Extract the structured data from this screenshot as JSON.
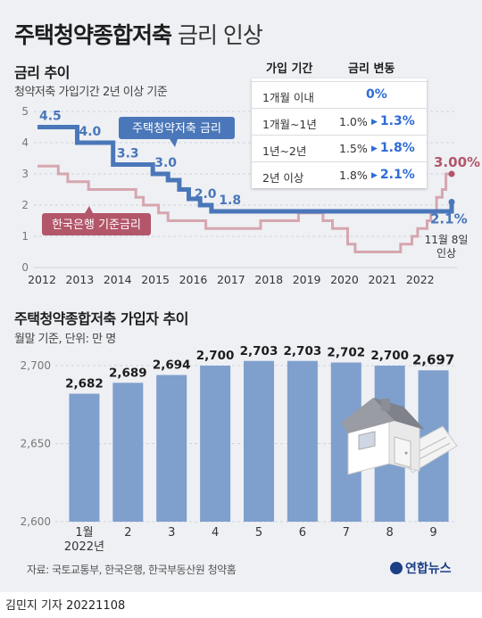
{
  "title": {
    "main": "주택청약종합저축",
    "sub": " 금리 인상"
  },
  "top_section": {
    "title": "금리 추이",
    "subtitle": "청약저축 가입기간 2년 이상 기준"
  },
  "rate_table": {
    "headers": [
      "가입 기간",
      "금리 변동"
    ],
    "rows": [
      {
        "period": "1개월 이내",
        "before": "",
        "after": "0%"
      },
      {
        "period": "1개월~1년",
        "before": "1.0%",
        "after": "1.3%"
      },
      {
        "period": "1년~2년",
        "before": "1.5%",
        "after": "1.8%"
      },
      {
        "period": "2년 이상",
        "before": "1.8%",
        "after": "2.1%"
      }
    ]
  },
  "bottom_section": {
    "title": "주택청약종합저축 가입자 추이",
    "subtitle": "월말 기준, 단위: 만 명"
  },
  "footer": {
    "source": "자료: 국토교통부, 한국은행, 한국부동산원 청약홈",
    "logo": "연합뉴스",
    "byline": "김민지 기자  20221108"
  },
  "colors": {
    "savings": "#4a77b9",
    "base_rate": "#d6a6ae",
    "base_rate_label": "#b3566a",
    "bars": "#7f9fcd",
    "card": "#eef0f4"
  },
  "chart_data": [
    {
      "type": "line",
      "ylim": [
        0,
        5
      ],
      "yticks": [
        "0",
        "1",
        "2",
        "3",
        "4",
        "5"
      ],
      "xticks": [
        "2012",
        "2013",
        "2014",
        "2015",
        "2016",
        "2017",
        "2018",
        "2019",
        "2020",
        "2021",
        "2022"
      ],
      "series": [
        {
          "name": "주택청약저축 금리",
          "points": [
            [
              2012.0,
              4.5
            ],
            [
              2013.05,
              4.5
            ],
            [
              2013.05,
              4.0
            ],
            [
              2014.0,
              4.0
            ],
            [
              2014.0,
              3.3
            ],
            [
              2015.05,
              3.3
            ],
            [
              2015.05,
              3.0
            ],
            [
              2015.45,
              3.0
            ],
            [
              2015.45,
              2.8
            ],
            [
              2015.75,
              2.8
            ],
            [
              2015.75,
              2.5
            ],
            [
              2016.0,
              2.5
            ],
            [
              2016.0,
              2.2
            ],
            [
              2016.3,
              2.2
            ],
            [
              2016.3,
              2.0
            ],
            [
              2016.6,
              2.0
            ],
            [
              2016.6,
              1.8
            ],
            [
              2022.95,
              1.8
            ],
            [
              2022.95,
              2.1
            ]
          ],
          "labels": [
            {
              "x": 2012.0,
              "y": 4.5,
              "text": "4.5"
            },
            {
              "x": 2013.05,
              "y": 4.0,
              "text": "4.0"
            },
            {
              "x": 2014.05,
              "y": 3.3,
              "text": "3.3"
            },
            {
              "x": 2015.05,
              "y": 3.0,
              "text": "3.0"
            },
            {
              "x": 2016.1,
              "y": 2.0,
              "text": "2.0"
            },
            {
              "x": 2016.75,
              "y": 1.8,
              "text": "1.8"
            },
            {
              "x": 2022.95,
              "y": 2.1,
              "text": "2.1%"
            }
          ]
        },
        {
          "name": "한국은행 기준금리",
          "points": [
            [
              2012.0,
              3.25
            ],
            [
              2012.55,
              3.25
            ],
            [
              2012.55,
              3.0
            ],
            [
              2012.8,
              3.0
            ],
            [
              2012.8,
              2.75
            ],
            [
              2013.35,
              2.75
            ],
            [
              2013.35,
              2.5
            ],
            [
              2014.6,
              2.5
            ],
            [
              2014.6,
              2.25
            ],
            [
              2014.8,
              2.25
            ],
            [
              2014.8,
              2.0
            ],
            [
              2015.2,
              2.0
            ],
            [
              2015.2,
              1.75
            ],
            [
              2015.45,
              1.75
            ],
            [
              2015.45,
              1.5
            ],
            [
              2016.45,
              1.5
            ],
            [
              2016.45,
              1.25
            ],
            [
              2017.9,
              1.25
            ],
            [
              2017.9,
              1.5
            ],
            [
              2018.9,
              1.5
            ],
            [
              2018.9,
              1.75
            ],
            [
              2019.55,
              1.75
            ],
            [
              2019.55,
              1.5
            ],
            [
              2019.8,
              1.5
            ],
            [
              2019.8,
              1.25
            ],
            [
              2020.2,
              1.25
            ],
            [
              2020.2,
              0.75
            ],
            [
              2020.4,
              0.75
            ],
            [
              2020.4,
              0.5
            ],
            [
              2021.6,
              0.5
            ],
            [
              2021.6,
              0.75
            ],
            [
              2021.9,
              0.75
            ],
            [
              2021.9,
              1.0
            ],
            [
              2022.05,
              1.0
            ],
            [
              2022.05,
              1.25
            ],
            [
              2022.3,
              1.25
            ],
            [
              2022.3,
              1.5
            ],
            [
              2022.4,
              1.5
            ],
            [
              2022.4,
              1.75
            ],
            [
              2022.55,
              1.75
            ],
            [
              2022.55,
              2.25
            ],
            [
              2022.7,
              2.25
            ],
            [
              2022.7,
              2.5
            ],
            [
              2022.8,
              2.5
            ],
            [
              2022.8,
              3.0
            ],
            [
              2022.95,
              3.0
            ]
          ],
          "labels": [
            {
              "x": 2022.95,
              "y": 3.0,
              "text": "3.00%"
            }
          ]
        }
      ],
      "annotations": [
        "11월 8일",
        "인상"
      ]
    },
    {
      "type": "bar",
      "ylim": [
        2600,
        2700
      ],
      "yticks": [
        "2,600",
        "2,650",
        "2,700"
      ],
      "categories": [
        "1월",
        "2",
        "3",
        "4",
        "5",
        "6",
        "7",
        "8",
        "9"
      ],
      "category_sublabel": "2022년",
      "values": [
        2682,
        2689,
        2694,
        2700,
        2703,
        2703,
        2702,
        2700,
        2697
      ],
      "value_labels": [
        "2,682",
        "2,689",
        "2,694",
        "2,700",
        "2,703",
        "2,703",
        "2,702",
        "2,700",
        "2,697"
      ]
    }
  ]
}
